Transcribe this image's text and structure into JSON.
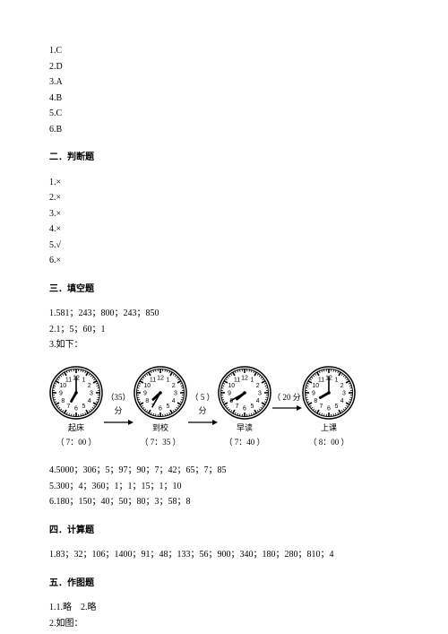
{
  "section1": {
    "answers": [
      "1.C",
      "2.D",
      "3.A",
      "4.B",
      "5.C",
      "6.B"
    ]
  },
  "section2": {
    "title": "二．判断题",
    "answers": [
      "1.×",
      "2.×",
      "3.×",
      "4.×",
      "5.√",
      "6.×"
    ]
  },
  "section3": {
    "title": "三．填空题",
    "lines": [
      "1.581；243；800；243；850",
      "2.1；5；60；1",
      "3.如下："
    ],
    "clocks": [
      {
        "label": "起床",
        "time": "（ 7：00 ）",
        "hour": 7,
        "minute": 0
      },
      {
        "label": "到校",
        "time": "（ 7：35 ）",
        "hour": 7,
        "minute": 35
      },
      {
        "label": "早读",
        "time": "（ 7：40 ）",
        "hour": 7,
        "minute": 40
      },
      {
        "label": "上课",
        "time": "（ 8：00 ）",
        "hour": 8,
        "minute": 0
      }
    ],
    "gaps": [
      "（35）分",
      "（ 5 ）分",
      "（ 20 分"
    ],
    "lines2": [
      "4.5000；306；5；97；90；7；42；65；7；85",
      "5.300；4；360；1；1；15；1；10",
      "6.180；150；40；50；80；3；58；8"
    ]
  },
  "section4": {
    "title": "四．计算题",
    "lines": [
      "1.83；32；106；1400；91；48；133；56；900；340；180；280；810；4"
    ]
  },
  "section5": {
    "title": "五．作图题",
    "lines": [
      "1.1.略　2.略",
      "2.如图："
    ]
  },
  "clock_style": {
    "diameter": 60,
    "outline_color": "#000",
    "face_color": "#fff"
  }
}
